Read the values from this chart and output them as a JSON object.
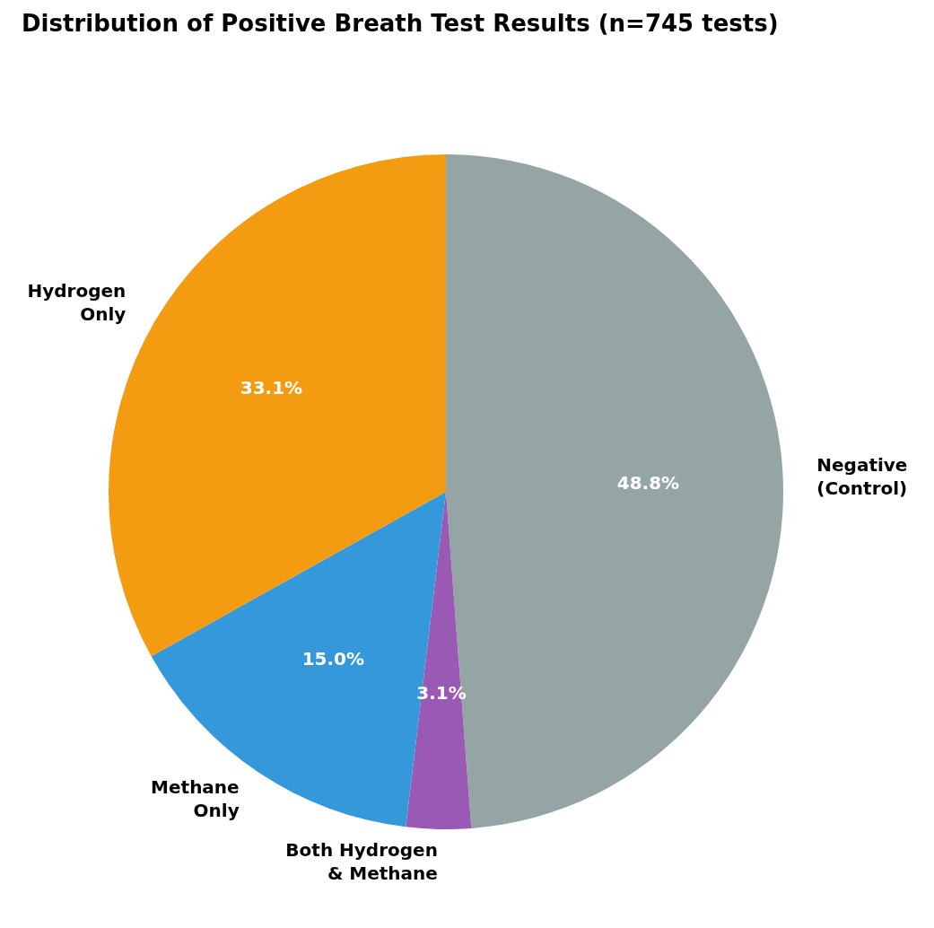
{
  "chart_data": {
    "type": "pie",
    "title": "Distribution of Positive Breath Test Results (n=745 tests)",
    "categories": [
      "Negative\n(Control)",
      "Both Hydrogen\n& Methane",
      "Methane\nOnly",
      "Hydrogen\nOnly"
    ],
    "values": [
      48.8,
      3.1,
      15.0,
      33.1
    ],
    "colors": [
      "#95a5a6",
      "#9b59b6",
      "#3498db",
      "#f39c12"
    ],
    "value_labels": [
      "48.8%",
      "3.1%",
      "15.0%",
      "33.1%"
    ],
    "legend": false
  }
}
